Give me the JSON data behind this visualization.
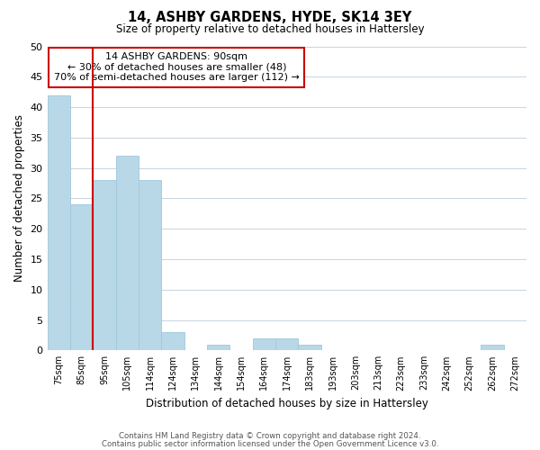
{
  "title": "14, ASHBY GARDENS, HYDE, SK14 3EY",
  "subtitle": "Size of property relative to detached houses in Hattersley",
  "xlabel": "Distribution of detached houses by size in Hattersley",
  "ylabel": "Number of detached properties",
  "bar_color": "#b8d8e8",
  "bar_edge_color": "#9fc8dc",
  "vline_color": "#cc0000",
  "categories": [
    "75sqm",
    "85sqm",
    "95sqm",
    "105sqm",
    "114sqm",
    "124sqm",
    "134sqm",
    "144sqm",
    "154sqm",
    "164sqm",
    "174sqm",
    "183sqm",
    "193sqm",
    "203sqm",
    "213sqm",
    "223sqm",
    "233sqm",
    "242sqm",
    "252sqm",
    "262sqm",
    "272sqm"
  ],
  "values": [
    42,
    24,
    28,
    32,
    28,
    3,
    0,
    1,
    0,
    2,
    2,
    1,
    0,
    0,
    0,
    0,
    0,
    0,
    0,
    1,
    0
  ],
  "ylim": [
    0,
    50
  ],
  "yticks": [
    0,
    5,
    10,
    15,
    20,
    25,
    30,
    35,
    40,
    45,
    50
  ],
  "annotation_title": "14 ASHBY GARDENS: 90sqm",
  "annotation_line1": "← 30% of detached houses are smaller (48)",
  "annotation_line2": "70% of semi-detached houses are larger (112) →",
  "footnote1": "Contains HM Land Registry data © Crown copyright and database right 2024.",
  "footnote2": "Contains public sector information licensed under the Open Government Licence v3.0.",
  "background_color": "#ffffff",
  "grid_color": "#c8d4e0"
}
